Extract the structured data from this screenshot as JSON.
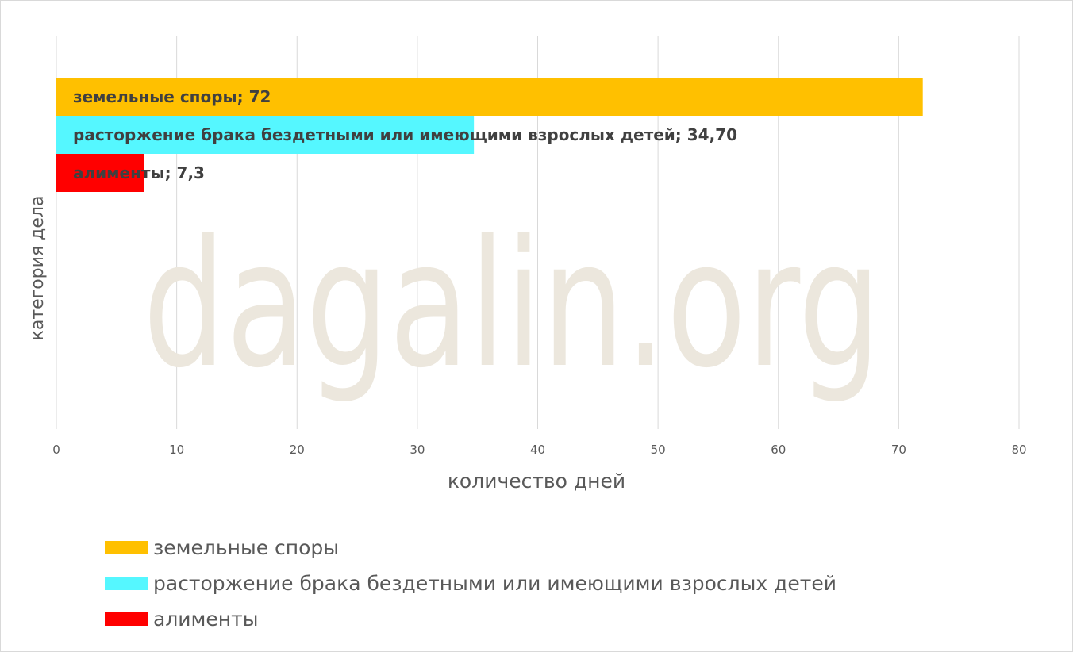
{
  "watermark": "dagalin.org",
  "chart_data": {
    "type": "bar",
    "orientation": "horizontal",
    "xlabel": "количество дней",
    "ylabel": "категория дела",
    "xlim": [
      0,
      80
    ],
    "xticks": [
      0,
      10,
      20,
      30,
      40,
      50,
      60,
      70,
      80
    ],
    "grid": true,
    "legend_position": "bottom",
    "series": [
      {
        "name": "земельные споры",
        "value": 72,
        "label": "земельные споры; 72",
        "color": "#FFC000"
      },
      {
        "name": "расторжение брака бездетными или имеющими взрослых детей",
        "value": 34.7,
        "label": "расторжение брака бездетными или имеющими взрослых детей; 34,70",
        "color": "#55F7FF"
      },
      {
        "name": "алименты",
        "value": 7.3,
        "label": "алименты; 7,3",
        "color": "#FF0000"
      }
    ]
  }
}
